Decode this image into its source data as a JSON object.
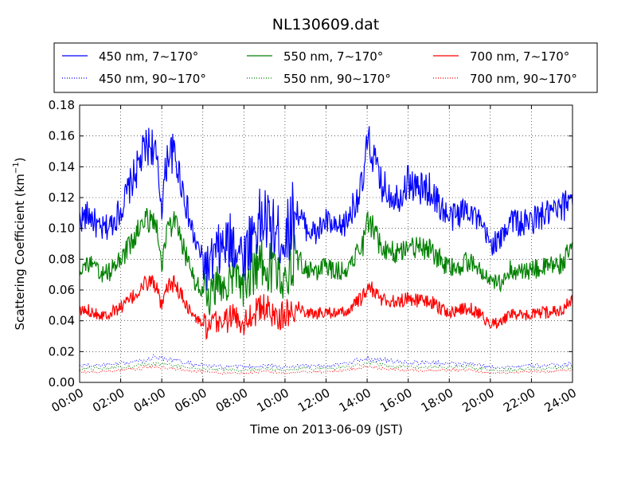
{
  "chart_data": {
    "type": "line",
    "title": "NL130609.dat",
    "xlabel": "Time on 2013-06-09 (JST)",
    "ylabel": "Scattering Coefficient (km",
    "ylabel_sup": "−1",
    "ylabel_end": ")",
    "xlim": [
      0,
      24
    ],
    "ylim": [
      0,
      0.18
    ],
    "x_ticks": [
      0,
      2,
      4,
      6,
      8,
      10,
      12,
      14,
      16,
      18,
      20,
      22,
      24
    ],
    "x_tick_labels": [
      "00:00",
      "02:00",
      "04:00",
      "06:00",
      "08:00",
      "10:00",
      "12:00",
      "14:00",
      "16:00",
      "18:00",
      "20:00",
      "22:00",
      "24:00"
    ],
    "y_ticks": [
      0,
      0.02,
      0.04,
      0.06,
      0.08,
      0.1,
      0.12,
      0.14,
      0.16,
      0.18
    ],
    "y_tick_labels": [
      "0.00",
      "0.02",
      "0.04",
      "0.06",
      "0.08",
      "0.10",
      "0.12",
      "0.14",
      "0.16",
      "0.18"
    ],
    "grid": true,
    "legend_position": "top",
    "series": [
      {
        "name": "450 nm, 7∼170°",
        "color": "#0000ff",
        "style": "solid",
        "series_key": "blue_total",
        "x": [
          0,
          0.5,
          1,
          1.5,
          2,
          2.5,
          3,
          3.2,
          3.5,
          3.7,
          4,
          4.3,
          4.6,
          5,
          5.3,
          5.6,
          6,
          6.3,
          6.6,
          7,
          7.5,
          8,
          8.5,
          9,
          9.5,
          10,
          10.5,
          11,
          11.5,
          12,
          12.5,
          13,
          13.5,
          13.8,
          14,
          14.3,
          14.6,
          15,
          15.5,
          16,
          16.5,
          17,
          17.5,
          18,
          18.5,
          19,
          19.5,
          20,
          20.5,
          21,
          21.5,
          22,
          22.5,
          23,
          23.5,
          24
        ],
        "y": [
          0.106,
          0.109,
          0.098,
          0.102,
          0.112,
          0.129,
          0.145,
          0.152,
          0.155,
          0.147,
          0.115,
          0.15,
          0.148,
          0.128,
          0.108,
          0.092,
          0.08,
          0.073,
          0.083,
          0.087,
          0.092,
          0.082,
          0.1,
          0.106,
          0.097,
          0.093,
          0.113,
          0.101,
          0.096,
          0.105,
          0.098,
          0.104,
          0.12,
          0.128,
          0.155,
          0.148,
          0.13,
          0.124,
          0.12,
          0.131,
          0.125,
          0.126,
          0.116,
          0.106,
          0.11,
          0.114,
          0.102,
          0.09,
          0.092,
          0.108,
          0.102,
          0.105,
          0.108,
          0.11,
          0.112,
          0.125
        ]
      },
      {
        "name": "550 nm, 7∼170°",
        "color": "#008000",
        "style": "solid",
        "series_key": "green_total",
        "x": [
          0,
          0.5,
          1,
          1.5,
          2,
          2.5,
          3,
          3.2,
          3.5,
          3.7,
          4,
          4.3,
          4.6,
          5,
          5.3,
          5.6,
          6,
          6.3,
          6.6,
          7,
          7.5,
          8,
          8.5,
          9,
          9.5,
          10,
          10.5,
          11,
          11.5,
          12,
          12.5,
          13,
          13.5,
          13.8,
          14,
          14.3,
          14.6,
          15,
          15.5,
          16,
          16.5,
          17,
          17.5,
          18,
          18.5,
          19,
          19.5,
          20,
          20.5,
          21,
          21.5,
          22,
          22.5,
          23,
          23.5,
          24
        ],
        "y": [
          0.075,
          0.077,
          0.07,
          0.072,
          0.08,
          0.09,
          0.101,
          0.105,
          0.108,
          0.103,
          0.078,
          0.102,
          0.103,
          0.09,
          0.077,
          0.066,
          0.06,
          0.055,
          0.062,
          0.064,
          0.068,
          0.061,
          0.073,
          0.078,
          0.071,
          0.069,
          0.082,
          0.074,
          0.071,
          0.076,
          0.072,
          0.074,
          0.085,
          0.09,
          0.104,
          0.1,
          0.09,
          0.086,
          0.084,
          0.09,
          0.087,
          0.086,
          0.08,
          0.074,
          0.076,
          0.079,
          0.072,
          0.064,
          0.065,
          0.074,
          0.071,
          0.073,
          0.074,
          0.076,
          0.077,
          0.088
        ]
      },
      {
        "name": "700 nm, 7∼170°",
        "color": "#ff0000",
        "style": "solid",
        "series_key": "red_total",
        "x": [
          0,
          0.5,
          1,
          1.5,
          2,
          2.5,
          3,
          3.2,
          3.5,
          3.7,
          4,
          4.3,
          4.6,
          5,
          5.3,
          5.6,
          6,
          6.3,
          6.6,
          7,
          7.5,
          8,
          8.5,
          9,
          9.5,
          10,
          10.5,
          11,
          11.5,
          12,
          12.5,
          13,
          13.5,
          13.8,
          14,
          14.3,
          14.6,
          15,
          15.5,
          16,
          16.5,
          17,
          17.5,
          18,
          18.5,
          19,
          19.5,
          20,
          20.5,
          21,
          21.5,
          22,
          22.5,
          23,
          23.5,
          24
        ],
        "y": [
          0.046,
          0.047,
          0.044,
          0.045,
          0.049,
          0.054,
          0.061,
          0.064,
          0.066,
          0.063,
          0.048,
          0.063,
          0.064,
          0.056,
          0.048,
          0.042,
          0.038,
          0.034,
          0.039,
          0.04,
          0.043,
          0.039,
          0.046,
          0.048,
          0.044,
          0.043,
          0.05,
          0.046,
          0.044,
          0.047,
          0.044,
          0.046,
          0.052,
          0.055,
          0.062,
          0.06,
          0.055,
          0.053,
          0.052,
          0.055,
          0.053,
          0.053,
          0.049,
          0.045,
          0.047,
          0.048,
          0.044,
          0.038,
          0.039,
          0.045,
          0.043,
          0.044,
          0.045,
          0.046,
          0.047,
          0.054
        ]
      },
      {
        "name": "450 nm, 90∼170°",
        "color": "#0000ff",
        "style": "dotted",
        "series_key": "blue_back",
        "x": [
          0,
          1,
          2,
          3,
          3.5,
          4,
          5,
          6,
          7,
          8,
          9,
          10,
          11,
          12,
          13,
          13.8,
          14,
          15,
          16,
          17,
          18,
          19,
          20,
          21,
          22,
          23,
          24
        ],
        "y": [
          0.011,
          0.011,
          0.012,
          0.014,
          0.016,
          0.016,
          0.013,
          0.011,
          0.01,
          0.01,
          0.011,
          0.01,
          0.011,
          0.011,
          0.012,
          0.015,
          0.016,
          0.014,
          0.013,
          0.013,
          0.012,
          0.012,
          0.01,
          0.01,
          0.011,
          0.011,
          0.012
        ]
      },
      {
        "name": "550 nm, 90∼170°",
        "color": "#008000",
        "style": "dotted",
        "series_key": "green_back",
        "x": [
          0,
          1,
          2,
          3,
          3.5,
          4,
          5,
          6,
          7,
          8,
          9,
          10,
          11,
          12,
          13,
          13.8,
          14,
          15,
          16,
          17,
          18,
          19,
          20,
          21,
          22,
          23,
          24
        ],
        "y": [
          0.009,
          0.009,
          0.01,
          0.011,
          0.012,
          0.012,
          0.01,
          0.009,
          0.008,
          0.008,
          0.009,
          0.008,
          0.009,
          0.009,
          0.01,
          0.012,
          0.013,
          0.011,
          0.01,
          0.01,
          0.01,
          0.01,
          0.008,
          0.008,
          0.009,
          0.009,
          0.01
        ]
      },
      {
        "name": "700 nm, 90∼170°",
        "color": "#ff0000",
        "style": "dotted",
        "series_key": "red_back",
        "x": [
          0,
          1,
          2,
          3,
          3.5,
          4,
          5,
          6,
          7,
          8,
          9,
          10,
          11,
          12,
          13,
          13.8,
          14,
          15,
          16,
          17,
          18,
          19,
          20,
          21,
          22,
          23,
          24
        ],
        "y": [
          0.007,
          0.007,
          0.008,
          0.009,
          0.01,
          0.01,
          0.008,
          0.007,
          0.006,
          0.006,
          0.007,
          0.006,
          0.007,
          0.007,
          0.008,
          0.01,
          0.01,
          0.009,
          0.008,
          0.008,
          0.008,
          0.008,
          0.006,
          0.006,
          0.007,
          0.007,
          0.008
        ]
      }
    ]
  }
}
